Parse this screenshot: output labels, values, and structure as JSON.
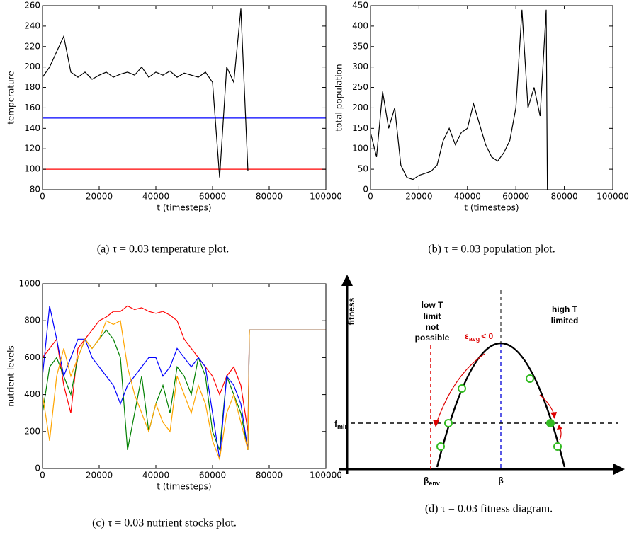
{
  "chart_data": [
    {
      "type": "line",
      "caption": "(a) τ = 0.03 temperature plot.",
      "xlabel": "t (timesteps)",
      "ylabel": "temperature",
      "xlim": [
        0,
        100000
      ],
      "xticks": [
        0,
        20000,
        40000,
        60000,
        80000,
        100000
      ],
      "ylim": [
        80,
        260
      ],
      "yticks": [
        80,
        100,
        120,
        140,
        160,
        180,
        200,
        220,
        240,
        260
      ],
      "series": [
        {
          "color": "#0000ff",
          "x": [
            0,
            100000
          ],
          "values": [
            150,
            150
          ]
        },
        {
          "color": "#ff0000",
          "x": [
            0,
            100000
          ],
          "values": [
            100,
            100
          ]
        },
        {
          "color": "#000000",
          "x": [
            0,
            2500,
            5000,
            7500,
            10000,
            12500,
            15000,
            17500,
            20000,
            22500,
            25000,
            27500,
            30000,
            32500,
            35000,
            37500,
            40000,
            42500,
            45000,
            47500,
            50000,
            52500,
            55000,
            57500,
            60000,
            62500,
            65000,
            67500,
            70000,
            72500
          ],
          "values": [
            190,
            200,
            215,
            230,
            195,
            190,
            195,
            188,
            192,
            195,
            190,
            193,
            195,
            192,
            200,
            190,
            195,
            192,
            196,
            190,
            194,
            192,
            190,
            195,
            185,
            92,
            200,
            185,
            257,
            98
          ]
        }
      ]
    },
    {
      "type": "line",
      "caption": "(b) τ = 0.03 population plot.",
      "xlabel": "t (timesteps)",
      "ylabel": "total population",
      "xlim": [
        0,
        100000
      ],
      "xticks": [
        0,
        20000,
        40000,
        60000,
        80000,
        100000
      ],
      "ylim": [
        0,
        450
      ],
      "yticks": [
        0,
        50,
        100,
        150,
        200,
        250,
        300,
        350,
        400,
        450
      ],
      "series": [
        {
          "color": "#000000",
          "x": [
            0,
            2500,
            5000,
            7500,
            10000,
            12500,
            15000,
            17500,
            20000,
            22500,
            25000,
            27500,
            30000,
            32500,
            35000,
            37500,
            40000,
            42500,
            45000,
            47500,
            50000,
            52500,
            55000,
            57500,
            60000,
            62500,
            65000,
            67500,
            70000,
            72500,
            73000
          ],
          "values": [
            140,
            80,
            240,
            150,
            200,
            60,
            30,
            25,
            35,
            40,
            45,
            60,
            120,
            150,
            110,
            140,
            150,
            210,
            160,
            110,
            80,
            70,
            90,
            120,
            200,
            440,
            200,
            250,
            180,
            440,
            0
          ]
        }
      ]
    },
    {
      "type": "line",
      "caption": "(c) τ = 0.03 nutrient stocks plot.",
      "xlabel": "t (timesteps)",
      "ylabel": "nutrient levels",
      "xlim": [
        0,
        100000
      ],
      "xticks": [
        0,
        20000,
        40000,
        60000,
        80000,
        100000
      ],
      "ylim": [
        0,
        1000
      ],
      "yticks": [
        0,
        200,
        400,
        600,
        800,
        1000
      ],
      "series": [
        {
          "color": "#ff0000",
          "x": [
            0,
            2500,
            5000,
            7500,
            10000,
            12500,
            15000,
            17500,
            20000,
            22500,
            25000,
            27500,
            30000,
            32500,
            35000,
            37500,
            40000,
            42500,
            45000,
            47500,
            50000,
            52500,
            55000,
            57500,
            60000,
            62500,
            65000,
            67500,
            70000,
            72500,
            73000,
            100000
          ],
          "values": [
            600,
            650,
            700,
            450,
            300,
            650,
            700,
            750,
            800,
            820,
            850,
            850,
            880,
            860,
            870,
            850,
            840,
            850,
            830,
            800,
            700,
            650,
            600,
            550,
            500,
            400,
            500,
            550,
            450,
            200,
            750,
            750
          ]
        },
        {
          "color": "#008000",
          "x": [
            0,
            2500,
            5000,
            7500,
            10000,
            12500,
            15000,
            17500,
            20000,
            22500,
            25000,
            27500,
            30000,
            32500,
            35000,
            37500,
            40000,
            42500,
            45000,
            47500,
            50000,
            52500,
            55000,
            57500,
            60000,
            62500,
            65000,
            67500,
            70000,
            72500,
            73000,
            100000
          ],
          "values": [
            300,
            550,
            600,
            500,
            400,
            600,
            700,
            650,
            700,
            750,
            700,
            600,
            100,
            300,
            500,
            200,
            350,
            450,
            300,
            550,
            500,
            400,
            600,
            500,
            200,
            100,
            500,
            400,
            300,
            100,
            750,
            750
          ]
        },
        {
          "color": "#0000ff",
          "x": [
            0,
            2500,
            5000,
            7500,
            10000,
            12500,
            15000,
            17500,
            20000,
            22500,
            25000,
            27500,
            30000,
            32500,
            35000,
            37500,
            40000,
            42500,
            45000,
            47500,
            50000,
            52500,
            55000,
            57500,
            60000,
            62500,
            65000,
            67500,
            70000,
            72500,
            73000,
            100000
          ],
          "values": [
            500,
            880,
            700,
            500,
            600,
            700,
            700,
            600,
            550,
            500,
            450,
            350,
            450,
            500,
            550,
            600,
            600,
            500,
            550,
            650,
            600,
            550,
            600,
            550,
            300,
            50,
            500,
            450,
            350,
            100,
            750,
            750
          ]
        },
        {
          "color": "#ffa500",
          "x": [
            0,
            2500,
            5000,
            7500,
            10000,
            12500,
            15000,
            17500,
            20000,
            22500,
            25000,
            27500,
            30000,
            32500,
            35000,
            37500,
            40000,
            42500,
            45000,
            47500,
            50000,
            52500,
            55000,
            57500,
            60000,
            62500,
            65000,
            67500,
            70000,
            72500,
            73000,
            100000
          ],
          "values": [
            400,
            150,
            500,
            650,
            500,
            600,
            700,
            650,
            700,
            800,
            780,
            800,
            550,
            400,
            300,
            200,
            350,
            250,
            200,
            500,
            400,
            300,
            450,
            350,
            150,
            50,
            300,
            400,
            250,
            100,
            750,
            750
          ]
        }
      ]
    },
    {
      "type": "diagram",
      "caption": "(d) τ = 0.03 fitness diagram.",
      "y_axis_label": "fitness",
      "left_region": [
        "low T",
        "limit",
        "not",
        "possible"
      ],
      "right_region": [
        "high T",
        "limited"
      ],
      "epsilon": {
        "symbol": "ε",
        "subscript": "avg",
        "relation": "< 0"
      },
      "threshold": {
        "symbol": "f",
        "subscript": "min"
      },
      "beta_env": {
        "symbol": "β",
        "subscript": "env"
      },
      "beta": "β"
    }
  ]
}
